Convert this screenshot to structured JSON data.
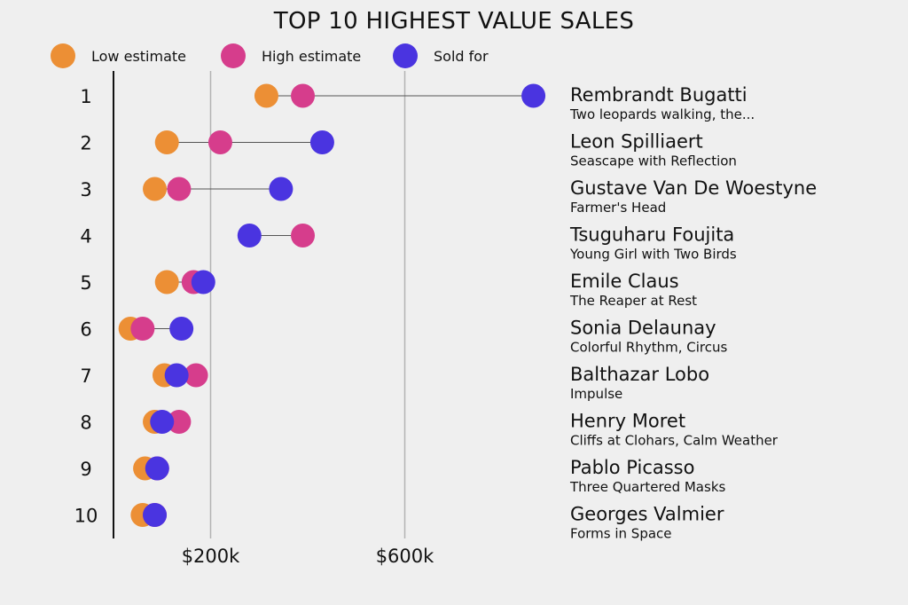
{
  "chart_data": {
    "type": "dot-plot",
    "title": "TOP 10 HIGHEST VALUE SALES",
    "legend": [
      {
        "key": "low",
        "label": "Low estimate",
        "color": "#ec8f35"
      },
      {
        "key": "high",
        "label": "High estimate",
        "color": "#d63d8c"
      },
      {
        "key": "sold",
        "label": "Sold for",
        "color": "#4a34e0"
      }
    ],
    "xlim": [
      0,
      950000
    ],
    "x_ticks": [
      {
        "value": 200000,
        "label": "$200k"
      },
      {
        "value": 600000,
        "label": "$600k"
      }
    ],
    "rows": [
      {
        "rank": "1",
        "artist": "Rembrandt Bugatti",
        "title": "Two leopards walking, the...",
        "low": 315000,
        "high": 390000,
        "sold": 865000
      },
      {
        "rank": "2",
        "artist": "Leon Spilliaert",
        "title": "Seascape with Reflection",
        "low": 110000,
        "high": 220000,
        "sold": 430000
      },
      {
        "rank": "3",
        "artist": "Gustave Van De Woestyne",
        "title": "Farmer's Head",
        "low": 85000,
        "high": 135000,
        "sold": 345000
      },
      {
        "rank": "4",
        "artist": "Tsuguharu Foujita",
        "title": "Young Girl with Two Birds",
        "low": null,
        "high": 390000,
        "sold": 280000
      },
      {
        "rank": "5",
        "artist": "Emile Claus",
        "title": "The Reaper at Rest",
        "low": 110000,
        "high": 165000,
        "sold": 185000
      },
      {
        "rank": "6",
        "artist": "Sonia Delaunay",
        "title": "Colorful Rhythm, Circus",
        "low": 35000,
        "high": 60000,
        "sold": 140000
      },
      {
        "rank": "7",
        "artist": "Balthazar Lobo",
        "title": "Impulse",
        "low": 105000,
        "high": 170000,
        "sold": 130000
      },
      {
        "rank": "8",
        "artist": "Henry Moret",
        "title": "Cliffs at Clohars, Calm Weather",
        "low": 85000,
        "high": 135000,
        "sold": 100000
      },
      {
        "rank": "9",
        "artist": "Pablo Picasso",
        "title": "Three Quartered Masks",
        "low": 65000,
        "high": 90000,
        "sold": 90000
      },
      {
        "rank": "10",
        "artist": "Georges Valmier",
        "title": "Forms in Space",
        "low": 60000,
        "high": 85000,
        "sold": 85000
      }
    ]
  }
}
